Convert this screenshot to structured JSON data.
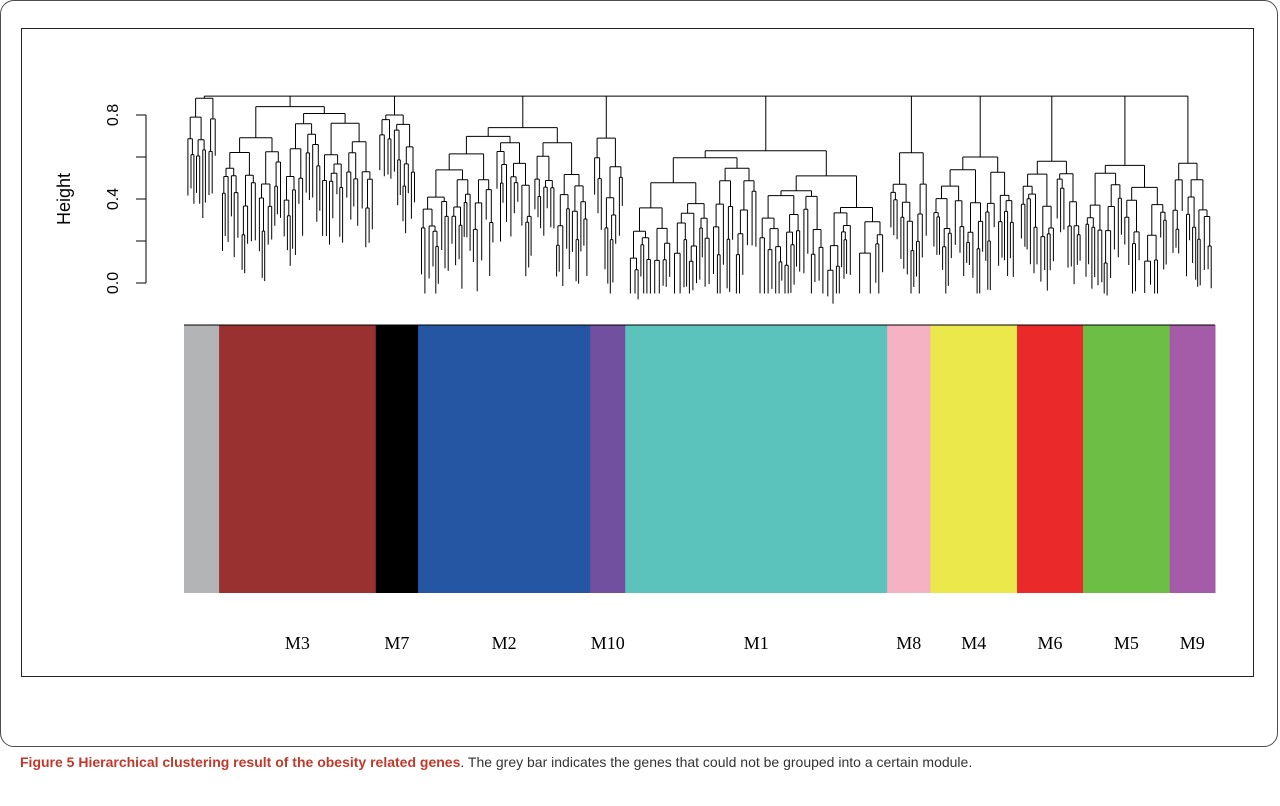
{
  "figure": {
    "caption_title": "Figure 5 Hierarchical clustering result of the obesity related genes",
    "caption_text": ". The grey bar indicates the genes that could not be grouped into a certain module."
  },
  "chart_data": {
    "type": "dendrogram",
    "ylabel": "Height",
    "ylim": [
      0.0,
      0.9
    ],
    "y_ticks": [
      "0.0",
      "0.4",
      "0.8"
    ],
    "y_tick_values": [
      0.0,
      0.2,
      0.4,
      0.6,
      0.8
    ],
    "modules": [
      {
        "label": "",
        "color": "#b3b4b6",
        "share": 0.034
      },
      {
        "label": "M3",
        "color": "#9a3131",
        "share": 0.152
      },
      {
        "label": "M7",
        "color": "#000000",
        "share": 0.041
      },
      {
        "label": "M2",
        "color": "#2456a4",
        "share": 0.167
      },
      {
        "label": "M10",
        "color": "#7150a0",
        "share": 0.034
      },
      {
        "label": "M1",
        "color": "#5bc3bb",
        "share": 0.254
      },
      {
        "label": "M8",
        "color": "#f5b2c2",
        "share": 0.042
      },
      {
        "label": "M4",
        "color": "#eae84b",
        "share": 0.084
      },
      {
        "label": "M6",
        "color": "#ea2a2a",
        "share": 0.064
      },
      {
        "label": "M5",
        "color": "#6dbe45",
        "share": 0.084
      },
      {
        "label": "M9",
        "color": "#a45ba8",
        "share": 0.044
      }
    ],
    "module_merge_heights": [
      0.88,
      0.84,
      0.8,
      0.74,
      0.69,
      0.63,
      0.62,
      0.6,
      0.58,
      0.56,
      0.57
    ],
    "root_height": 0.89
  }
}
